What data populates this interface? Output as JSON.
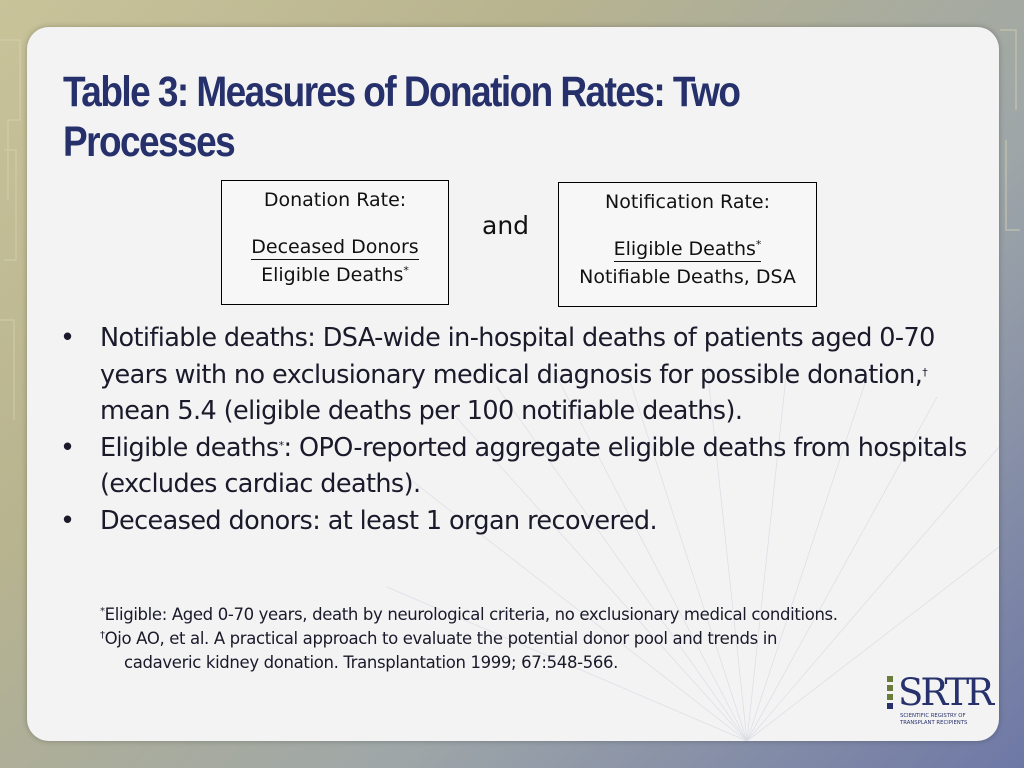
{
  "title": {
    "line1": "Table 3: Measures of Donation Rates: Two",
    "line2": "Processes"
  },
  "donation_box": {
    "heading": "Donation Rate:",
    "numerator": "Deceased Donors",
    "denominator": "Eligible Deaths",
    "denominator_mark": "*"
  },
  "connector": "and",
  "notification_box": {
    "heading": "Notification Rate:",
    "numerator": "Eligible Deaths",
    "numerator_mark": "*",
    "denominator": "Notifiable Deaths, DSA"
  },
  "bullets": [
    {
      "dot": "•",
      "part1": "Notifiable deaths: DSA-wide in-hospital deaths of patients aged 0-70 years with no exclusionary medical diagnosis for possible donation,",
      "mark": "†",
      "part2": " mean 5.4 (eligible deaths per 100 notifiable deaths)."
    },
    {
      "dot": "•",
      "part1": "Eligible deaths",
      "mark": "*",
      "part2": ": OPO-reported aggregate eligible deaths from hospitals (excludes cardiac deaths)."
    },
    {
      "dot": "•",
      "text": "Deceased donors: at least 1 organ recovered."
    }
  ],
  "footnotes": {
    "note1_mark": "*",
    "note1": "Eligible: Aged 0-70 years, death by neurological criteria, no exclusionary medical conditions.",
    "note2_mark": "†",
    "note2_line1": "Ojo AO, et al. A practical approach to evaluate the potential donor pool and trends in",
    "note2_line2": "cadaveric kidney donation. Transplantation 1999; 67:548-566."
  },
  "logo": {
    "wordmark": "SRTR",
    "tagline_line1": "Scientific Registry of",
    "tagline_line2": "Transplant Recipients"
  },
  "colors": {
    "title": "#26306b",
    "panel": "#f3f3f4",
    "logo_navy": "#27316b",
    "logo_green": "#6b7d3a"
  }
}
